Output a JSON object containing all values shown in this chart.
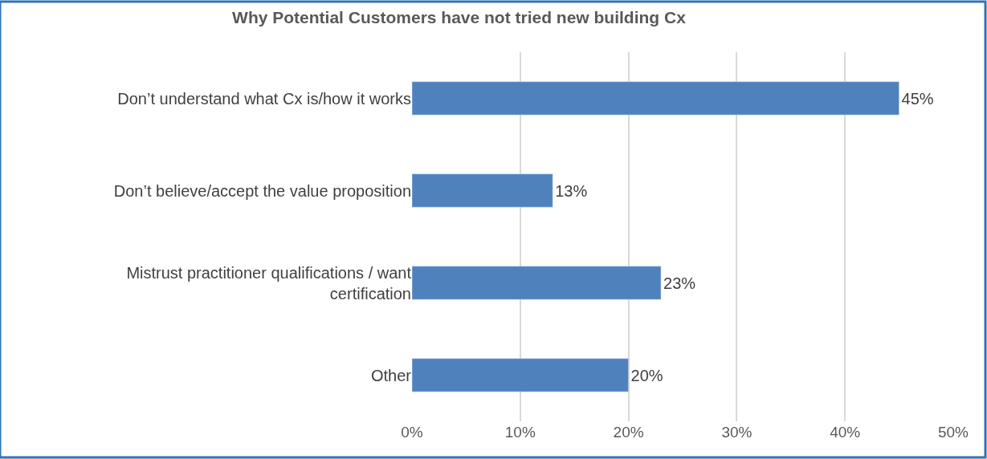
{
  "chart_data": {
    "type": "bar",
    "orientation": "horizontal",
    "title": "Why Potential Customers have not tried new building Cx",
    "categories": [
      "Don’t understand what Cx is/how it works",
      "Don’t believe/accept the value proposition",
      "Mistrust practitioner qualifications / want certification",
      "Other"
    ],
    "values": [
      45,
      13,
      23,
      20
    ],
    "color": "#4f81bd",
    "xlim": [
      0,
      50
    ],
    "xticks": [
      {
        "value": 0,
        "label": "0%"
      },
      {
        "value": 10,
        "label": "10%"
      },
      {
        "value": 20,
        "label": "20%"
      },
      {
        "value": 30,
        "label": "30%"
      },
      {
        "value": 40,
        "label": "40%"
      },
      {
        "value": 50,
        "label": "50%"
      }
    ],
    "value_labels": [
      "45%",
      "13%",
      "23%",
      "20%"
    ],
    "grid": "x",
    "legend": false
  }
}
